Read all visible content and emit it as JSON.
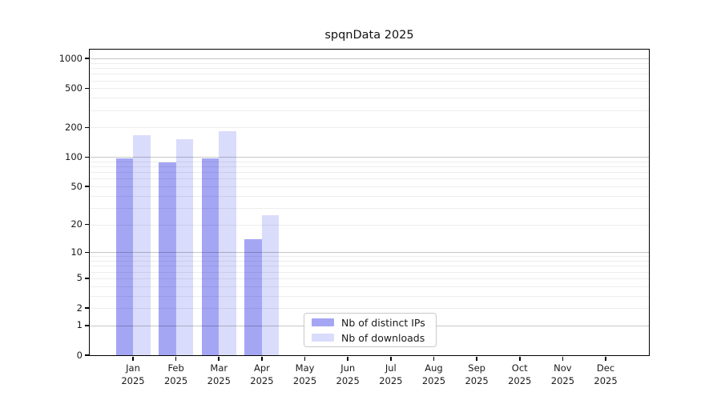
{
  "chart_data": {
    "type": "bar",
    "title": "spqnData 2025",
    "y_scale": "log1p",
    "x_months": [
      "Jan",
      "Feb",
      "Mar",
      "Apr",
      "May",
      "Jun",
      "Jul",
      "Aug",
      "Sep",
      "Oct",
      "Nov",
      "Dec"
    ],
    "x_year": "2025",
    "y_ticks": [
      0,
      1,
      2,
      5,
      10,
      20,
      50,
      100,
      200,
      500,
      1000
    ],
    "y_major_gridlines": [
      1,
      10,
      100,
      1000
    ],
    "series": [
      {
        "name": "Nb of distinct IPs",
        "color": "#a4a6f4",
        "values": [
          97,
          88,
          97,
          14,
          0,
          0,
          0,
          0,
          0,
          0,
          0,
          0
        ]
      },
      {
        "name": "Nb of downloads",
        "color": "#dadcfb",
        "values": [
          167,
          152,
          183,
          25,
          0,
          0,
          0,
          0,
          0,
          0,
          0,
          0
        ]
      }
    ],
    "legend_position": "lower center",
    "grid": true,
    "colors": {
      "major_grid": "#c6c6c6",
      "minor_grid": "#ededed",
      "axis": "#000000",
      "text": "#1a1a1a",
      "background": "#ffffff"
    }
  }
}
